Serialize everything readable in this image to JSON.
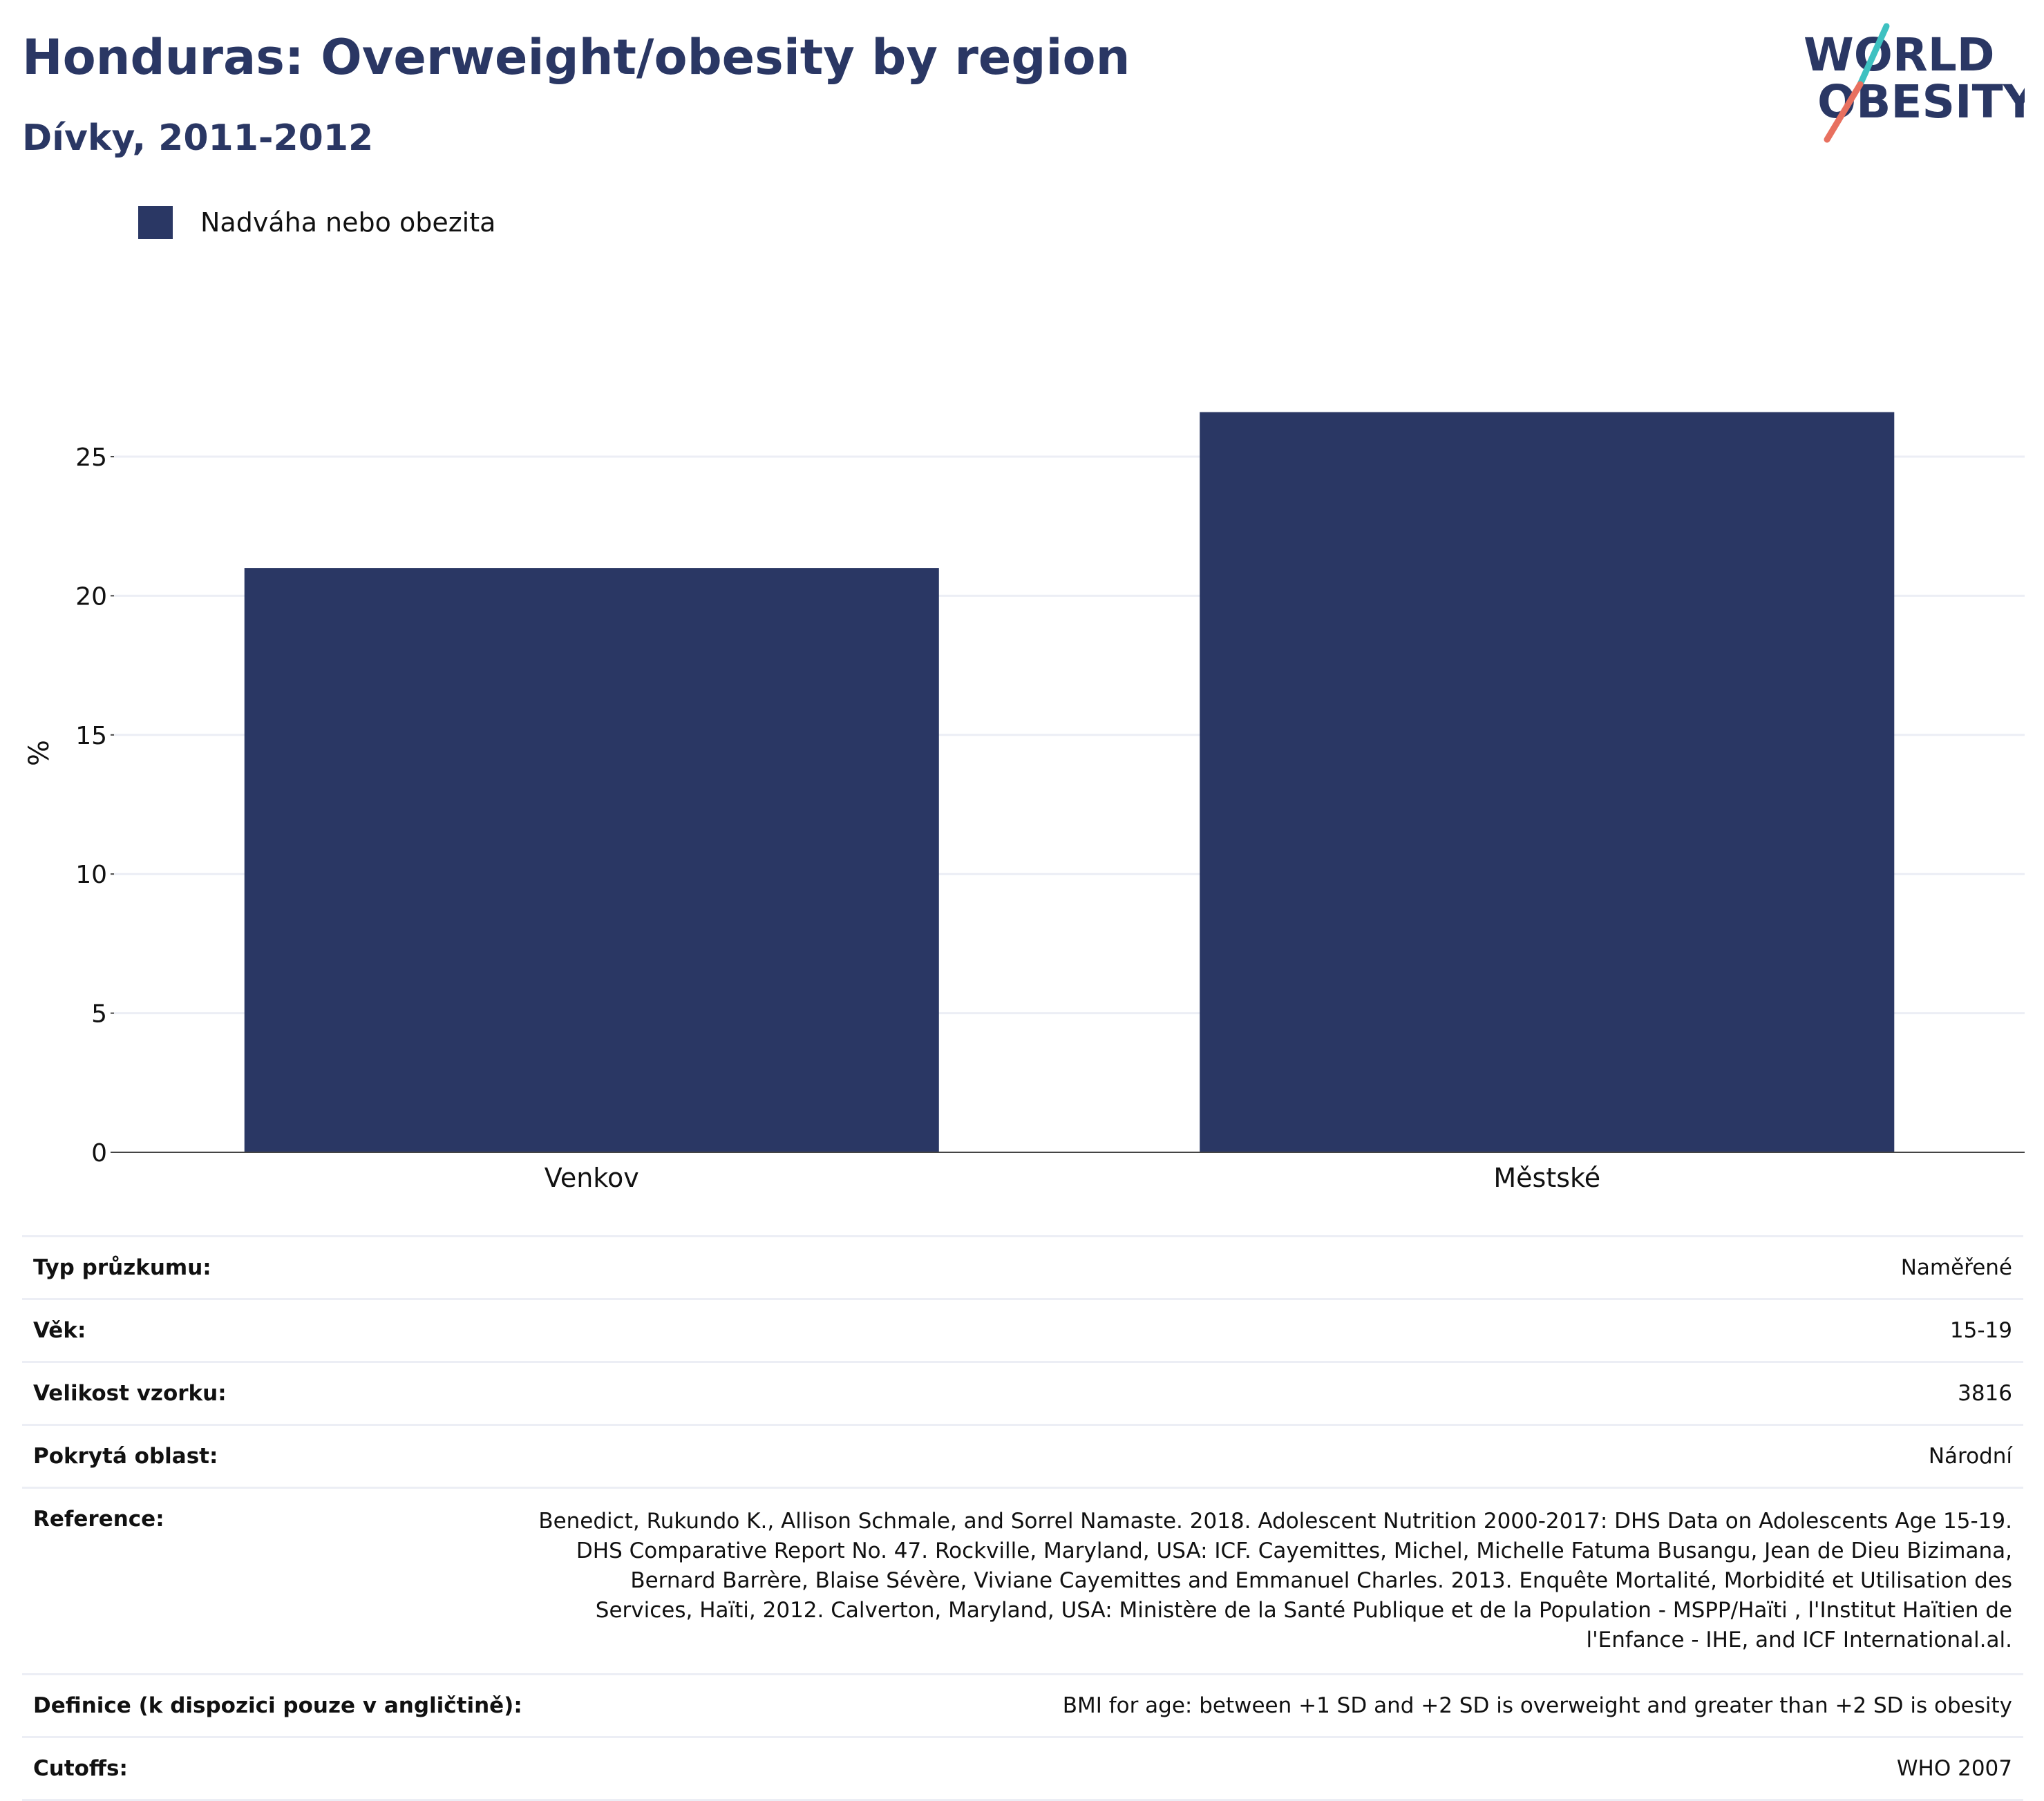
{
  "header": {
    "title": "Honduras: Overweight/obesity by region",
    "subtitle": "Dívky, 2011-2012"
  },
  "logo": {
    "line1": "WORLD",
    "line2": "OBESITY",
    "colors": {
      "text": "#2a3764",
      "slash_top": "#3ec1c1",
      "slash_bottom": "#e8705f"
    }
  },
  "legend": {
    "label": "Nadváha nebo obezita",
    "color": "#2a3764"
  },
  "chart_data": {
    "type": "bar",
    "categories": [
      "Venkov",
      "Městské"
    ],
    "series": [
      {
        "name": "Nadváha nebo obezita",
        "values": [
          21.0,
          26.6
        ],
        "color": "#2a3764"
      }
    ],
    "ylabel": "%",
    "xlabel": "",
    "ylim": [
      0,
      28.5
    ],
    "yticks": [
      0,
      5,
      10,
      15,
      20,
      25
    ],
    "grid": true,
    "legend_position": "top-left"
  },
  "info": {
    "rows": [
      {
        "key": "Typ průzkumu:",
        "value": "Naměřené"
      },
      {
        "key": "Věk:",
        "value": "15-19"
      },
      {
        "key": "Velikost vzorku:",
        "value": "3816"
      },
      {
        "key": "Pokrytá oblast:",
        "value": "Národní"
      },
      {
        "key": "Reference:",
        "value": "Benedict, Rukundo K., Allison Schmale, and Sorrel Namaste. 2018. Adolescent Nutrition 2000-2017: DHS Data on Adolescents Age 15-19. DHS Comparative Report No. 47. Rockville, Maryland, USA: ICF. Cayemittes, Michel, Michelle Fatuma Busangu, Jean de Dieu Bizimana, Bernard Barrère, Blaise Sévère, Viviane Cayemittes and Emmanuel Charles. 2013. Enquête Mortalité, Morbidité et Utilisation des Services, Haïti, 2012. Calverton, Maryland, USA: Ministère de la Santé Publique et de la Population - MSPP/Haïti , l'Institut Haïtien de l'Enfance - IHE, and ICF International.al."
      },
      {
        "key": "Definice (k dispozici pouze v angličtině):",
        "value": "BMI for age: between +1 SD and +2 SD is overweight and greater than +2 SD is obesity"
      },
      {
        "key": "Cutoffs:",
        "value": "WHO 2007"
      }
    ]
  }
}
